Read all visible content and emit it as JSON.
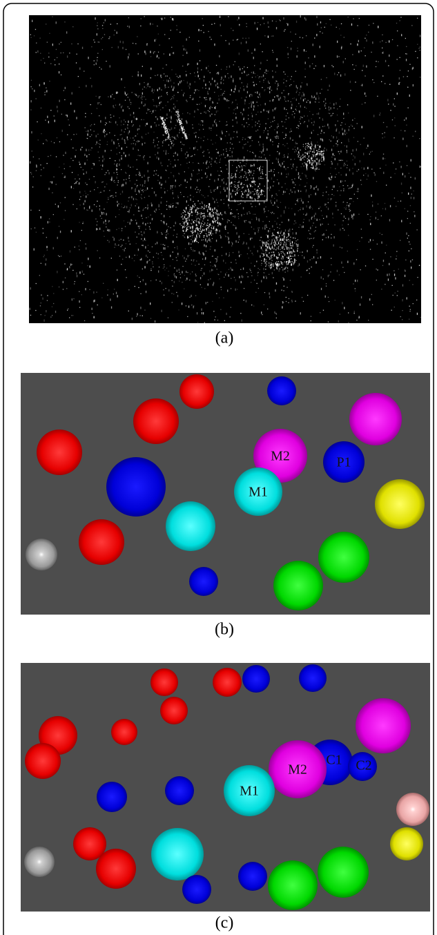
{
  "panels": [
    {
      "caption": "(a)"
    },
    {
      "caption": "(b)",
      "labels": [
        "M2",
        "P1",
        "M1"
      ]
    },
    {
      "caption": "(c)",
      "labels": [
        "C1",
        "C2",
        "M2",
        "M1"
      ]
    }
  ]
}
